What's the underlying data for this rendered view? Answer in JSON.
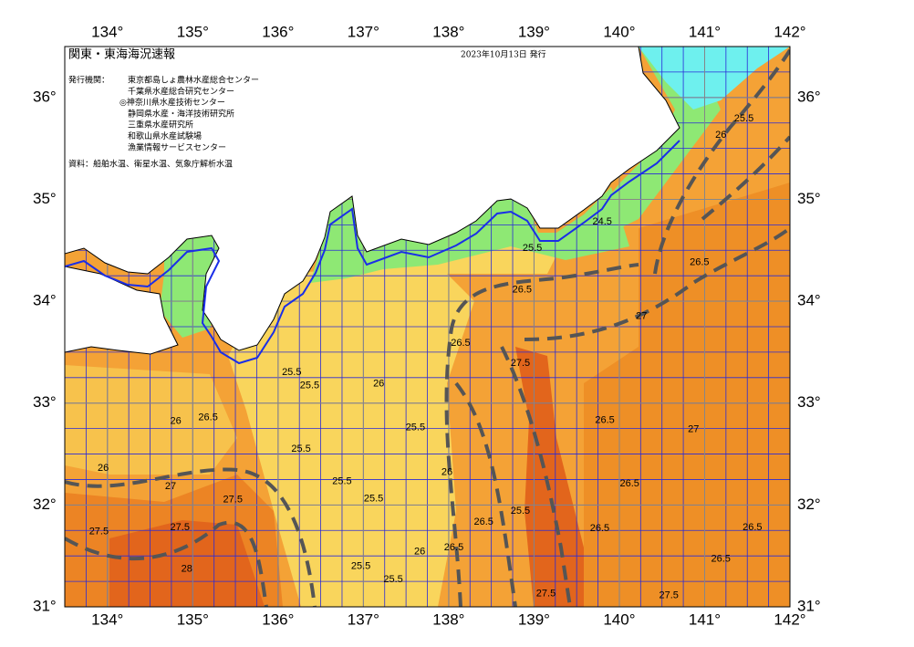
{
  "header": {
    "title": "関東・東海海況速報",
    "date": "2023年10月13日 発行",
    "issuer_label": "発行機関：",
    "issuers": [
      "東京都島しょ農林水産総合センター",
      "千葉県水産総合研究センター",
      "◎神奈川県水産技術センター",
      "静岡県水産・海洋技術研究所",
      "三重県水産研究所",
      "和歌山県水産試験場",
      "漁業情報サービスセンター"
    ],
    "source": "資料：船舶水温、衛星水温、気象庁解析水温"
  },
  "axes": {
    "xlim": [
      133.5,
      142
    ],
    "ylim": [
      31,
      36.5
    ],
    "xticks": [
      {
        "value": 134,
        "label": "134°"
      },
      {
        "value": 135,
        "label": "135°"
      },
      {
        "value": 136,
        "label": "136°"
      },
      {
        "value": 137,
        "label": "137°"
      },
      {
        "value": 138,
        "label": "138°"
      },
      {
        "value": 139,
        "label": "139°"
      },
      {
        "value": 140,
        "label": "140°"
      },
      {
        "value": 141,
        "label": "141°"
      },
      {
        "value": 142,
        "label": "142°"
      }
    ],
    "yticks": [
      {
        "value": 31,
        "label": "31°"
      },
      {
        "value": 32,
        "label": "32°"
      },
      {
        "value": 33,
        "label": "33°"
      },
      {
        "value": 34,
        "label": "34°"
      },
      {
        "value": 35,
        "label": "35°"
      },
      {
        "value": 36,
        "label": "36°"
      }
    ]
  },
  "contour_labels": [
    {
      "text": "25.5",
      "lon": 141.46,
      "lat": 35.79
    },
    {
      "text": "26",
      "lon": 141.19,
      "lat": 35.63
    },
    {
      "text": "24.5",
      "lon": 139.8,
      "lat": 34.78
    },
    {
      "text": "25.5",
      "lon": 138.98,
      "lat": 34.52
    },
    {
      "text": "26.5",
      "lon": 140.94,
      "lat": 34.38
    },
    {
      "text": "26.5",
      "lon": 138.86,
      "lat": 34.11
    },
    {
      "text": "27",
      "lon": 140.26,
      "lat": 33.85
    },
    {
      "text": "26.5",
      "lon": 138.14,
      "lat": 33.59
    },
    {
      "text": "27.5",
      "lon": 138.84,
      "lat": 33.39
    },
    {
      "text": "25.5",
      "lon": 136.16,
      "lat": 33.3
    },
    {
      "text": "25.5",
      "lon": 136.37,
      "lat": 33.17
    },
    {
      "text": "26",
      "lon": 137.18,
      "lat": 33.19
    },
    {
      "text": "26.5",
      "lon": 135.18,
      "lat": 32.86
    },
    {
      "text": "26",
      "lon": 134.8,
      "lat": 32.82
    },
    {
      "text": "25.5",
      "lon": 137.61,
      "lat": 32.76
    },
    {
      "text": "26.5",
      "lon": 139.83,
      "lat": 32.83
    },
    {
      "text": "27",
      "lon": 140.87,
      "lat": 32.74
    },
    {
      "text": "25.5",
      "lon": 136.27,
      "lat": 32.55
    },
    {
      "text": "26",
      "lon": 137.98,
      "lat": 32.32
    },
    {
      "text": "27",
      "lon": 134.74,
      "lat": 32.18
    },
    {
      "text": "27.5",
      "lon": 135.47,
      "lat": 32.05
    },
    {
      "text": "26.5",
      "lon": 140.12,
      "lat": 32.21
    },
    {
      "text": "25.5",
      "lon": 136.75,
      "lat": 32.23
    },
    {
      "text": "27.5",
      "lon": 134.85,
      "lat": 31.78
    },
    {
      "text": "25.5",
      "lon": 137.12,
      "lat": 32.06
    },
    {
      "text": "26.5",
      "lon": 138.41,
      "lat": 31.83
    },
    {
      "text": "25.5",
      "lon": 138.84,
      "lat": 31.94
    },
    {
      "text": "26",
      "lon": 137.66,
      "lat": 31.54
    },
    {
      "text": "25.5",
      "lon": 136.97,
      "lat": 31.4
    },
    {
      "text": "25.5",
      "lon": 137.35,
      "lat": 31.27
    },
    {
      "text": "26.5",
      "lon": 138.06,
      "lat": 31.58
    },
    {
      "text": "26.5",
      "lon": 141.56,
      "lat": 31.78
    },
    {
      "text": "26.5",
      "lon": 141.19,
      "lat": 31.47
    },
    {
      "text": "27.5",
      "lon": 140.58,
      "lat": 31.11
    },
    {
      "text": "27.5",
      "lon": 139.14,
      "lat": 31.13
    },
    {
      "text": "28",
      "lon": 134.93,
      "lat": 31.37
    },
    {
      "text": "26.5",
      "lon": 139.77,
      "lat": 31.77
    },
    {
      "text": "26",
      "lon": 133.95,
      "lat": 32.36
    },
    {
      "text": "27.5",
      "lon": 133.9,
      "lat": 31.74
    }
  ]
}
